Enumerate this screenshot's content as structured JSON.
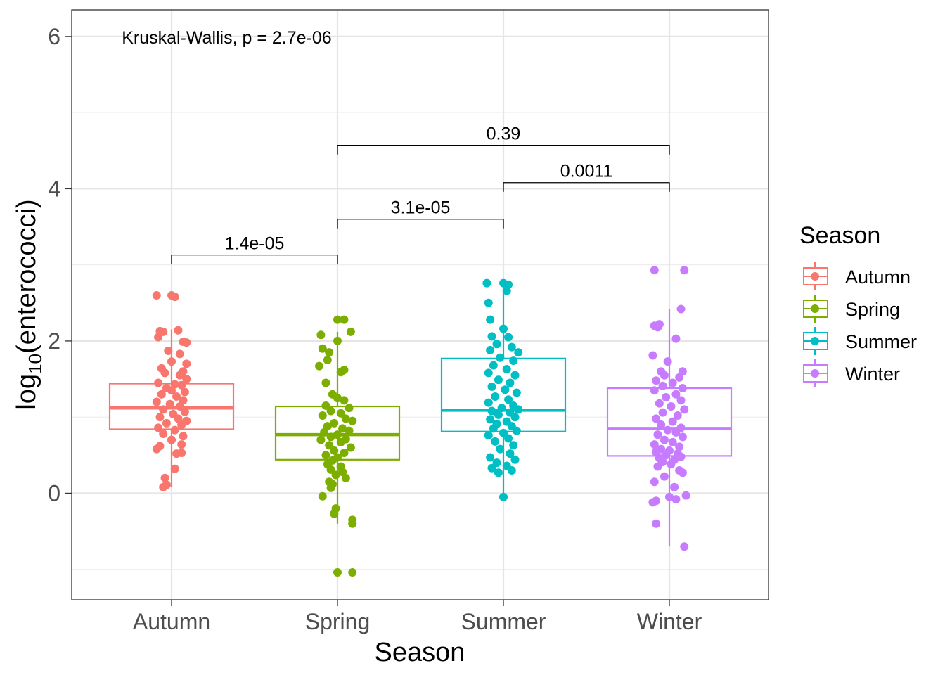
{
  "chart_data": {
    "type": "box",
    "xlabel": "Season",
    "ylabel_base": "log",
    "ylabel_sub": "10",
    "ylabel_rest": "(enterococci)",
    "categories": [
      "Autumn",
      "Spring",
      "Summer",
      "Winter"
    ],
    "colors": {
      "Autumn": "#F8766D",
      "Spring": "#7CAE00",
      "Summer": "#00BFC4",
      "Winter": "#C77CFF"
    },
    "ylim": [
      -1.4,
      6.35
    ],
    "yticks": [
      0,
      2,
      4,
      6
    ],
    "ytick_labels": [
      "0",
      "2",
      "4",
      "6"
    ],
    "grid": true,
    "boxes": [
      {
        "category": "Autumn",
        "min": 0.08,
        "q1": 0.84,
        "median": 1.12,
        "q3": 1.44,
        "max": 2.15
      },
      {
        "category": "Spring",
        "min": -0.4,
        "q1": 0.44,
        "median": 0.77,
        "q3": 1.14,
        "max": 2.12
      },
      {
        "category": "Summer",
        "min": -0.05,
        "q1": 0.81,
        "median": 1.09,
        "q3": 1.77,
        "max": 2.76
      },
      {
        "category": "Winter",
        "min": -0.7,
        "q1": 0.49,
        "median": 0.85,
        "q3": 1.38,
        "max": 2.42
      }
    ],
    "points": {
      "Autumn": [
        {
          "x": -0.09,
          "y": 2.6
        },
        {
          "x": 0.0,
          "y": 2.6
        },
        {
          "x": 0.02,
          "y": 2.58
        },
        {
          "x": -0.07,
          "y": 2.13
        },
        {
          "x": -0.05,
          "y": 2.12
        },
        {
          "x": 0.04,
          "y": 2.14
        },
        {
          "x": -0.08,
          "y": 2.05
        },
        {
          "x": 0.07,
          "y": 1.99
        },
        {
          "x": 0.09,
          "y": 1.98
        },
        {
          "x": -0.02,
          "y": 1.87
        },
        {
          "x": 0.05,
          "y": 1.83
        },
        {
          "x": 0.0,
          "y": 1.73
        },
        {
          "x": 0.09,
          "y": 1.7
        },
        {
          "x": -0.06,
          "y": 1.64
        },
        {
          "x": 0.07,
          "y": 1.6
        },
        {
          "x": -0.04,
          "y": 1.58
        },
        {
          "x": 0.05,
          "y": 1.55
        },
        {
          "x": 0.09,
          "y": 1.5
        },
        {
          "x": -0.08,
          "y": 1.45
        },
        {
          "x": 0.02,
          "y": 1.43
        },
        {
          "x": 0.06,
          "y": 1.42
        },
        {
          "x": -0.03,
          "y": 1.38
        },
        {
          "x": 0.0,
          "y": 1.35
        },
        {
          "x": 0.08,
          "y": 1.33
        },
        {
          "x": -0.06,
          "y": 1.3
        },
        {
          "x": 0.03,
          "y": 1.27
        },
        {
          "x": 0.07,
          "y": 1.22
        },
        {
          "x": -0.09,
          "y": 1.2
        },
        {
          "x": -0.01,
          "y": 1.17
        },
        {
          "x": 0.05,
          "y": 1.14
        },
        {
          "x": -0.05,
          "y": 1.1
        },
        {
          "x": 0.08,
          "y": 1.07
        },
        {
          "x": 0.01,
          "y": 1.04
        },
        {
          "x": -0.07,
          "y": 1.0
        },
        {
          "x": 0.04,
          "y": 0.98
        },
        {
          "x": 0.09,
          "y": 0.95
        },
        {
          "x": -0.03,
          "y": 0.92
        },
        {
          "x": 0.06,
          "y": 0.9
        },
        {
          "x": -0.08,
          "y": 0.86
        },
        {
          "x": 0.02,
          "y": 0.83
        },
        {
          "x": -0.05,
          "y": 0.78
        },
        {
          "x": 0.07,
          "y": 0.75
        },
        {
          "x": 0.0,
          "y": 0.7
        },
        {
          "x": -0.07,
          "y": 0.62
        },
        {
          "x": 0.06,
          "y": 0.64
        },
        {
          "x": -0.09,
          "y": 0.58
        },
        {
          "x": 0.06,
          "y": 0.53
        },
        {
          "x": 0.03,
          "y": 0.52
        },
        {
          "x": 0.02,
          "y": 0.32
        },
        {
          "x": -0.04,
          "y": 0.2
        },
        {
          "x": -0.03,
          "y": 0.11
        },
        {
          "x": -0.05,
          "y": 0.08
        }
      ],
      "Spring": [
        {
          "x": 0.0,
          "y": 2.28
        },
        {
          "x": 0.04,
          "y": 2.28
        },
        {
          "x": 0.08,
          "y": 2.12
        },
        {
          "x": -0.1,
          "y": 2.08
        },
        {
          "x": 0.0,
          "y": 2.0
        },
        {
          "x": -0.09,
          "y": 1.9
        },
        {
          "x": -0.05,
          "y": 1.85
        },
        {
          "x": -0.06,
          "y": 1.75
        },
        {
          "x": -0.11,
          "y": 1.67
        },
        {
          "x": 0.04,
          "y": 1.62
        },
        {
          "x": 0.02,
          "y": 1.59
        },
        {
          "x": -0.07,
          "y": 1.45
        },
        {
          "x": -0.03,
          "y": 1.3
        },
        {
          "x": 0.0,
          "y": 1.25
        },
        {
          "x": 0.04,
          "y": 1.22
        },
        {
          "x": -0.07,
          "y": 1.15
        },
        {
          "x": 0.07,
          "y": 1.12
        },
        {
          "x": -0.04,
          "y": 1.08
        },
        {
          "x": 0.02,
          "y": 1.05
        },
        {
          "x": -0.09,
          "y": 1.02
        },
        {
          "x": 0.05,
          "y": 0.98
        },
        {
          "x": 0.09,
          "y": 0.95
        },
        {
          "x": -0.02,
          "y": 0.92
        },
        {
          "x": -0.06,
          "y": 0.88
        },
        {
          "x": 0.03,
          "y": 0.85
        },
        {
          "x": 0.07,
          "y": 0.82
        },
        {
          "x": -0.08,
          "y": 0.8
        },
        {
          "x": 0.0,
          "y": 0.77
        },
        {
          "x": -0.04,
          "y": 0.74
        },
        {
          "x": 0.05,
          "y": 0.71
        },
        {
          "x": -0.1,
          "y": 0.7
        },
        {
          "x": 0.02,
          "y": 0.67
        },
        {
          "x": -0.05,
          "y": 0.63
        },
        {
          "x": 0.08,
          "y": 0.6
        },
        {
          "x": -0.02,
          "y": 0.56
        },
        {
          "x": 0.04,
          "y": 0.53
        },
        {
          "x": -0.07,
          "y": 0.5
        },
        {
          "x": 0.0,
          "y": 0.47
        },
        {
          "x": -0.03,
          "y": 0.43
        },
        {
          "x": -0.06,
          "y": 0.38
        },
        {
          "x": 0.02,
          "y": 0.35
        },
        {
          "x": -0.04,
          "y": 0.31
        },
        {
          "x": 0.03,
          "y": 0.28
        },
        {
          "x": -0.01,
          "y": 0.24
        },
        {
          "x": 0.05,
          "y": 0.2
        },
        {
          "x": -0.05,
          "y": 0.15
        },
        {
          "x": -0.03,
          "y": 0.12
        },
        {
          "x": -0.04,
          "y": 0.07
        },
        {
          "x": -0.09,
          "y": -0.04
        },
        {
          "x": -0.01,
          "y": -0.2
        },
        {
          "x": -0.02,
          "y": -0.27
        },
        {
          "x": 0.09,
          "y": -0.35
        },
        {
          "x": 0.09,
          "y": -0.4
        },
        {
          "x": 0.0,
          "y": -1.04
        },
        {
          "x": 0.09,
          "y": -1.04
        }
      ],
      "Summer": [
        {
          "x": -0.1,
          "y": 2.76
        },
        {
          "x": 0.0,
          "y": 2.76
        },
        {
          "x": 0.03,
          "y": 2.74
        },
        {
          "x": 0.02,
          "y": 2.66
        },
        {
          "x": -0.09,
          "y": 2.5
        },
        {
          "x": -0.08,
          "y": 2.28
        },
        {
          "x": 0.0,
          "y": 2.16
        },
        {
          "x": -0.07,
          "y": 2.06
        },
        {
          "x": 0.03,
          "y": 2.05
        },
        {
          "x": -0.04,
          "y": 1.96
        },
        {
          "x": 0.05,
          "y": 1.92
        },
        {
          "x": -0.08,
          "y": 1.88
        },
        {
          "x": 0.09,
          "y": 1.85
        },
        {
          "x": -0.02,
          "y": 1.78
        },
        {
          "x": 0.06,
          "y": 1.74
        },
        {
          "x": -0.06,
          "y": 1.68
        },
        {
          "x": 0.02,
          "y": 1.63
        },
        {
          "x": -0.09,
          "y": 1.58
        },
        {
          "x": 0.07,
          "y": 1.55
        },
        {
          "x": -0.03,
          "y": 1.49
        },
        {
          "x": 0.04,
          "y": 1.45
        },
        {
          "x": -0.07,
          "y": 1.4
        },
        {
          "x": 0.01,
          "y": 1.36
        },
        {
          "x": 0.08,
          "y": 1.32
        },
        {
          "x": -0.05,
          "y": 1.27
        },
        {
          "x": 0.03,
          "y": 1.23
        },
        {
          "x": -0.09,
          "y": 1.19
        },
        {
          "x": 0.06,
          "y": 1.15
        },
        {
          "x": -0.01,
          "y": 1.12
        },
        {
          "x": 0.09,
          "y": 1.1
        },
        {
          "x": -0.07,
          "y": 1.08
        },
        {
          "x": 0.04,
          "y": 1.06
        },
        {
          "x": -0.03,
          "y": 1.03
        },
        {
          "x": 0.07,
          "y": 1.0
        },
        {
          "x": -0.08,
          "y": 0.97
        },
        {
          "x": 0.02,
          "y": 0.94
        },
        {
          "x": -0.04,
          "y": 0.91
        },
        {
          "x": 0.05,
          "y": 0.88
        },
        {
          "x": -0.06,
          "y": 0.85
        },
        {
          "x": 0.08,
          "y": 0.82
        },
        {
          "x": 0.0,
          "y": 0.79
        },
        {
          "x": -0.09,
          "y": 0.76
        },
        {
          "x": 0.03,
          "y": 0.72
        },
        {
          "x": -0.05,
          "y": 0.68
        },
        {
          "x": 0.06,
          "y": 0.63
        },
        {
          "x": -0.02,
          "y": 0.58
        },
        {
          "x": 0.04,
          "y": 0.52
        },
        {
          "x": -0.08,
          "y": 0.47
        },
        {
          "x": 0.07,
          "y": 0.44
        },
        {
          "x": -0.04,
          "y": 0.4
        },
        {
          "x": 0.02,
          "y": 0.36
        },
        {
          "x": -0.07,
          "y": 0.33
        },
        {
          "x": 0.05,
          "y": 0.3
        },
        {
          "x": -0.03,
          "y": 0.27
        },
        {
          "x": 0.0,
          "y": -0.05
        }
      ],
      "Winter": [
        {
          "x": -0.09,
          "y": 2.93
        },
        {
          "x": 0.09,
          "y": 2.93
        },
        {
          "x": 0.07,
          "y": 2.42
        },
        {
          "x": -0.06,
          "y": 2.22
        },
        {
          "x": -0.09,
          "y": 2.2
        },
        {
          "x": -0.07,
          "y": 2.18
        },
        {
          "x": 0.04,
          "y": 2.03
        },
        {
          "x": -0.1,
          "y": 1.81
        },
        {
          "x": -0.01,
          "y": 1.73
        },
        {
          "x": -0.05,
          "y": 1.6
        },
        {
          "x": 0.08,
          "y": 1.6
        },
        {
          "x": -0.03,
          "y": 1.55
        },
        {
          "x": 0.06,
          "y": 1.52
        },
        {
          "x": -0.08,
          "y": 1.48
        },
        {
          "x": 0.02,
          "y": 1.45
        },
        {
          "x": -0.04,
          "y": 1.41
        },
        {
          "x": 0.08,
          "y": 1.38
        },
        {
          "x": -0.09,
          "y": 1.35
        },
        {
          "x": 0.04,
          "y": 1.3
        },
        {
          "x": -0.02,
          "y": 1.26
        },
        {
          "x": 0.07,
          "y": 1.22
        },
        {
          "x": -0.06,
          "y": 1.18
        },
        {
          "x": 0.01,
          "y": 1.14
        },
        {
          "x": 0.09,
          "y": 1.1
        },
        {
          "x": -0.04,
          "y": 1.06
        },
        {
          "x": 0.05,
          "y": 1.02
        },
        {
          "x": -0.08,
          "y": 0.98
        },
        {
          "x": 0.02,
          "y": 0.94
        },
        {
          "x": -0.05,
          "y": 0.9
        },
        {
          "x": 0.07,
          "y": 0.86
        },
        {
          "x": -0.01,
          "y": 0.83
        },
        {
          "x": 0.04,
          "y": 0.8
        },
        {
          "x": -0.07,
          "y": 0.77
        },
        {
          "x": 0.08,
          "y": 0.74
        },
        {
          "x": -0.03,
          "y": 0.7
        },
        {
          "x": 0.02,
          "y": 0.67
        },
        {
          "x": -0.09,
          "y": 0.64
        },
        {
          "x": 0.06,
          "y": 0.61
        },
        {
          "x": -0.05,
          "y": 0.58
        },
        {
          "x": 0.0,
          "y": 0.56
        },
        {
          "x": -0.08,
          "y": 0.54
        },
        {
          "x": 0.05,
          "y": 0.52
        },
        {
          "x": -0.02,
          "y": 0.5
        },
        {
          "x": 0.07,
          "y": 0.48
        },
        {
          "x": -0.06,
          "y": 0.46
        },
        {
          "x": 0.03,
          "y": 0.44
        },
        {
          "x": -0.04,
          "y": 0.41
        },
        {
          "x": 0.01,
          "y": 0.38
        },
        {
          "x": -0.07,
          "y": 0.35
        },
        {
          "x": 0.06,
          "y": 0.3
        },
        {
          "x": 0.08,
          "y": 0.27
        },
        {
          "x": -0.03,
          "y": 0.22
        },
        {
          "x": -0.09,
          "y": 0.15
        },
        {
          "x": 0.03,
          "y": 0.08
        },
        {
          "x": 0.0,
          "y": -0.05
        },
        {
          "x": -0.1,
          "y": -0.12
        },
        {
          "x": 0.04,
          "y": -0.08
        },
        {
          "x": 0.1,
          "y": -0.03
        },
        {
          "x": -0.08,
          "y": -0.1
        },
        {
          "x": -0.08,
          "y": -0.4
        },
        {
          "x": 0.09,
          "y": -0.7
        }
      ]
    },
    "comparisons": [
      {
        "from": "Autumn",
        "to": "Spring",
        "y": 3.13,
        "label": "1.4e-05"
      },
      {
        "from": "Spring",
        "to": "Summer",
        "y": 3.6,
        "label": "3.1e-05"
      },
      {
        "from": "Summer",
        "to": "Winter",
        "y": 4.08,
        "label": "0.0011"
      },
      {
        "from": "Spring",
        "to": "Winter",
        "y": 4.57,
        "label": "0.39"
      }
    ],
    "annotation": {
      "text": "Kruskal-Wallis, p = 2.7e-06",
      "x_category_index": 0.12,
      "y": 6.0
    },
    "legend": {
      "title": "Season",
      "placement": "right",
      "items": [
        "Autumn",
        "Spring",
        "Summer",
        "Winter"
      ]
    }
  }
}
